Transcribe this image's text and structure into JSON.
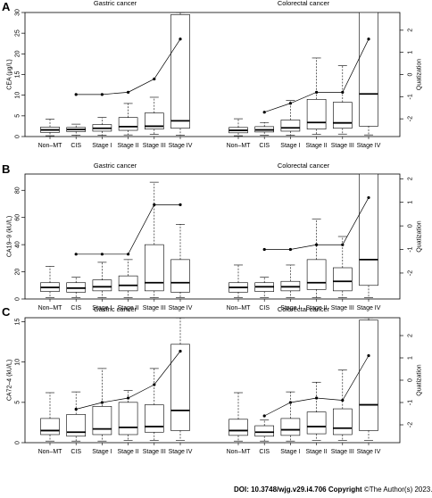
{
  "figure": {
    "categories": [
      "Non–MT",
      "CIS",
      "Stage I",
      "Stage II",
      "Stage III",
      "Stage IV"
    ],
    "right_axis_label": "Quatization",
    "right_ticks": [
      -2,
      -1,
      0,
      1,
      2
    ]
  },
  "chart_data": [
    {
      "type": "boxplot",
      "panel_label": "A",
      "ylabel": "CEA (μg/L)",
      "left_ticks": [
        0,
        5,
        10,
        15,
        20,
        25,
        30
      ],
      "ylim": [
        0,
        30
      ],
      "right_ylim": [
        -2.8,
        2.8
      ],
      "groups": [
        {
          "name": "Gastric cancer",
          "boxes": [
            {
              "category": "Non–MT",
              "whislo": 0.2,
              "q1": 1.0,
              "med": 1.6,
              "q3": 2.3,
              "whishi": 4.2
            },
            {
              "category": "CIS",
              "whislo": 0.3,
              "q1": 1.2,
              "med": 1.7,
              "q3": 2.2,
              "whishi": 3.0
            },
            {
              "category": "Stage I",
              "whislo": 0.3,
              "q1": 1.3,
              "med": 2.0,
              "q3": 2.9,
              "whishi": 4.6
            },
            {
              "category": "Stage II",
              "whislo": 0.4,
              "q1": 1.5,
              "med": 2.4,
              "q3": 4.6,
              "whishi": 8.0
            },
            {
              "category": "Stage III",
              "whislo": 0.5,
              "q1": 1.8,
              "med": 2.5,
              "q3": 5.7,
              "whishi": 9.5
            },
            {
              "category": "Stage IV",
              "whislo": 0.3,
              "q1": 2.0,
              "med": 3.8,
              "q3": 29.5,
              "whishi": 30
            }
          ],
          "quantization_line": {
            "categories": [
              "CIS",
              "Stage I",
              "Stage II",
              "Stage III",
              "Stage IV"
            ],
            "values": [
              -0.9,
              -0.9,
              -0.8,
              -0.2,
              1.6
            ]
          }
        },
        {
          "name": "Colorectal cancer",
          "boxes": [
            {
              "category": "Non–MT",
              "whislo": 0.2,
              "q1": 0.9,
              "med": 1.5,
              "q3": 2.2,
              "whishi": 4.3
            },
            {
              "category": "CIS",
              "whislo": 0.3,
              "q1": 1.1,
              "med": 1.6,
              "q3": 2.4,
              "whishi": 3.4
            },
            {
              "category": "Stage I",
              "whislo": 0.3,
              "q1": 1.3,
              "med": 2.1,
              "q3": 4.0,
              "whishi": 8.7
            },
            {
              "category": "Stage II",
              "whislo": 0.5,
              "q1": 1.8,
              "med": 3.4,
              "q3": 9.0,
              "whishi": 19.0
            },
            {
              "category": "Stage III",
              "whislo": 0.6,
              "q1": 2.0,
              "med": 3.3,
              "q3": 8.3,
              "whishi": 17.2
            },
            {
              "category": "Stage IV",
              "whislo": 0.4,
              "q1": 2.5,
              "med": 10.3,
              "q3": 30,
              "whishi": 30
            }
          ],
          "quantization_line": {
            "categories": [
              "CIS",
              "Stage I",
              "Stage II",
              "Stage III",
              "Stage IV"
            ],
            "values": [
              -1.7,
              -1.3,
              -0.8,
              -0.8,
              1.6
            ]
          }
        }
      ]
    },
    {
      "type": "boxplot",
      "panel_label": "B",
      "ylabel": "CA19–9 (kU/L)",
      "left_ticks": [
        0,
        20,
        40,
        60,
        80
      ],
      "ylim": [
        0,
        92
      ],
      "right_ylim": [
        -3.1,
        2.2
      ],
      "groups": [
        {
          "name": "Gastric cancer",
          "boxes": [
            {
              "category": "Non–MT",
              "whislo": 1,
              "q1": 5.5,
              "med": 8.5,
              "q3": 12,
              "whishi": 24
            },
            {
              "category": "CIS",
              "whislo": 1,
              "q1": 5,
              "med": 8,
              "q3": 12,
              "whishi": 16
            },
            {
              "category": "Stage I",
              "whislo": 1,
              "q1": 6,
              "med": 9,
              "q3": 14,
              "whishi": 27
            },
            {
              "category": "Stage II",
              "whislo": 1,
              "q1": 6,
              "med": 10,
              "q3": 17,
              "whishi": 29
            },
            {
              "category": "Stage III",
              "whislo": 1,
              "q1": 6,
              "med": 12,
              "q3": 40,
              "whishi": 86
            },
            {
              "category": "Stage IV",
              "whislo": 1,
              "q1": 5,
              "med": 12,
              "q3": 29,
              "whishi": 55
            }
          ],
          "quantization_line": {
            "categories": [
              "CIS",
              "Stage I",
              "Stage II",
              "Stage III",
              "Stage IV"
            ],
            "values": [
              -1.2,
              -1.2,
              -1.2,
              0.9,
              0.9
            ]
          }
        },
        {
          "name": "Colorectal cancer",
          "boxes": [
            {
              "category": "Non–MT",
              "whislo": 1,
              "q1": 5,
              "med": 8.5,
              "q3": 12,
              "whishi": 25
            },
            {
              "category": "CIS",
              "whislo": 1,
              "q1": 5.5,
              "med": 9,
              "q3": 12,
              "whishi": 16
            },
            {
              "category": "Stage I",
              "whislo": 1,
              "q1": 6,
              "med": 9,
              "q3": 13,
              "whishi": 25
            },
            {
              "category": "Stage II",
              "whislo": 1,
              "q1": 7,
              "med": 12,
              "q3": 29,
              "whishi": 59
            },
            {
              "category": "Stage III",
              "whislo": 1,
              "q1": 6,
              "med": 13,
              "q3": 23,
              "whishi": 46
            },
            {
              "category": "Stage IV",
              "whislo": 1,
              "q1": 10,
              "med": 29,
              "q3": 92,
              "whishi": 92
            }
          ],
          "quantization_line": {
            "categories": [
              "CIS",
              "Stage I",
              "Stage II",
              "Stage III",
              "Stage IV"
            ],
            "values": [
              -1.0,
              -1.0,
              -0.8,
              -0.8,
              1.2
            ]
          }
        }
      ]
    },
    {
      "type": "boxplot",
      "panel_label": "C",
      "ylabel": "CA72–4 (kU/L)",
      "left_ticks": [
        0,
        5,
        10,
        15
      ],
      "ylim": [
        0,
        15.5
      ],
      "right_ylim": [
        -2.8,
        2.8
      ],
      "groups": [
        {
          "name": "Gastric cancer",
          "boxes": [
            {
              "category": "Non–MT",
              "whislo": 0.2,
              "q1": 1.0,
              "med": 1.5,
              "q3": 3.0,
              "whishi": 6.2
            },
            {
              "category": "CIS",
              "whislo": 0.2,
              "q1": 0.8,
              "med": 1.3,
              "q3": 3.5,
              "whishi": 6.3
            },
            {
              "category": "Stage I",
              "whislo": 0.2,
              "q1": 1.0,
              "med": 1.7,
              "q3": 4.5,
              "whishi": 9.2
            },
            {
              "category": "Stage II",
              "whislo": 0.3,
              "q1": 1.0,
              "med": 1.9,
              "q3": 5.0,
              "whishi": 6.5
            },
            {
              "category": "Stage III",
              "whislo": 0.3,
              "q1": 1.3,
              "med": 2.0,
              "q3": 4.7,
              "whishi": 9.2
            },
            {
              "category": "Stage IV",
              "whislo": 0.3,
              "q1": 1.5,
              "med": 4.0,
              "q3": 12.2,
              "whishi": 15.5
            }
          ],
          "quantization_line": {
            "categories": [
              "CIS",
              "Stage I",
              "Stage II",
              "Stage III",
              "Stage IV"
            ],
            "values": [
              -1.3,
              -1.0,
              -0.8,
              -0.2,
              1.3
            ]
          }
        },
        {
          "name": "Colorectal cancer",
          "boxes": [
            {
              "category": "Non–MT",
              "whislo": 0.2,
              "q1": 0.9,
              "med": 1.5,
              "q3": 2.9,
              "whishi": 6.2
            },
            {
              "category": "CIS",
              "whislo": 0.2,
              "q1": 0.8,
              "med": 1.3,
              "q3": 2.1,
              "whishi": 2.8
            },
            {
              "category": "Stage I",
              "whislo": 0.2,
              "q1": 0.9,
              "med": 1.6,
              "q3": 3.0,
              "whishi": 6.3
            },
            {
              "category": "Stage II",
              "whislo": 0.3,
              "q1": 1.1,
              "med": 2.0,
              "q3": 3.8,
              "whishi": 7.5
            },
            {
              "category": "Stage III",
              "whislo": 0.3,
              "q1": 1.0,
              "med": 1.8,
              "q3": 4.2,
              "whishi": 9.0
            },
            {
              "category": "Stage IV",
              "whislo": 0.3,
              "q1": 1.5,
              "med": 4.7,
              "q3": 15.2,
              "whishi": 15.5
            }
          ],
          "quantization_line": {
            "categories": [
              "CIS",
              "Stage I",
              "Stage II",
              "Stage III",
              "Stage IV"
            ],
            "values": [
              -1.6,
              -1.0,
              -0.8,
              -0.9,
              1.1
            ]
          }
        }
      ]
    }
  ],
  "footer": {
    "doi": "DOI: 10.3748/wjg.v29.i4.706",
    "copyright_label": "Copyright",
    "copyright_text": "©The Author(s) 2023."
  }
}
